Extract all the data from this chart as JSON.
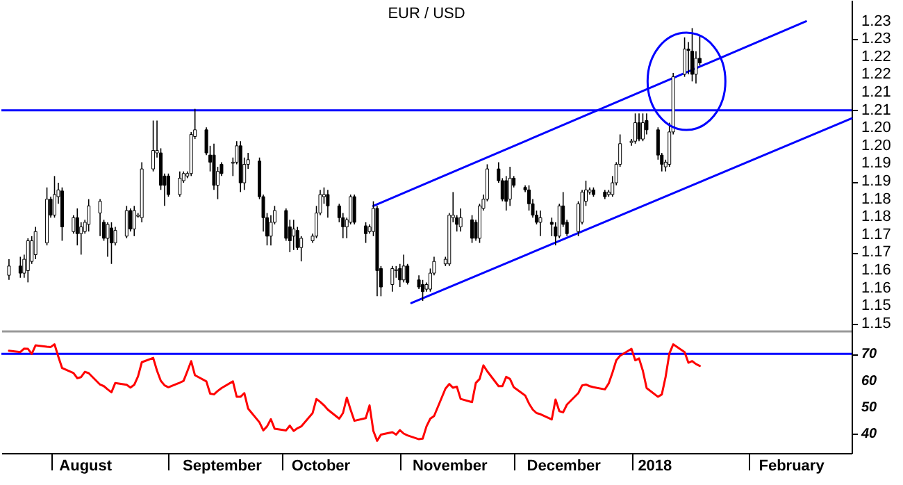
{
  "chart_data": [
    {
      "type": "candlestick",
      "title": "EUR / USD",
      "xlim": [
        "2017-07-19",
        "2018-02-28"
      ],
      "ylim": [
        1.148,
        1.241
      ],
      "yticks": [
        {
          "value": 1.15,
          "label": "1.15"
        },
        {
          "value": 1.155,
          "label": "1.15"
        },
        {
          "value": 1.16,
          "label": "1.16"
        },
        {
          "value": 1.165,
          "label": "1.16"
        },
        {
          "value": 1.17,
          "label": "1.17"
        },
        {
          "value": 1.175,
          "label": "1.17"
        },
        {
          "value": 1.18,
          "label": "1.18"
        },
        {
          "value": 1.185,
          "label": "1.18"
        },
        {
          "value": 1.19,
          "label": "1.19"
        },
        {
          "value": 1.195,
          "label": "1.19"
        },
        {
          "value": 1.2,
          "label": "1.20"
        },
        {
          "value": 1.205,
          "label": "1.20"
        },
        {
          "value": 1.21,
          "label": "1.21"
        },
        {
          "value": 1.215,
          "label": "1.21"
        },
        {
          "value": 1.22,
          "label": "1.22"
        },
        {
          "value": 1.225,
          "label": "1.22"
        },
        {
          "value": 1.23,
          "label": "1.23"
        },
        {
          "value": 1.235,
          "label": "1.23"
        }
      ],
      "tick_labels": "y",
      "grid": false,
      "ref_lines": [
        {
          "axis": "y",
          "value": 1.21,
          "color": "#0000ff"
        }
      ],
      "x": [
        "2017-07-21",
        "2017-07-24",
        "2017-07-25",
        "2017-07-26",
        "2017-07-27",
        "2017-07-28",
        "2017-07-31",
        "2017-08-01",
        "2017-08-02",
        "2017-08-03",
        "2017-08-04",
        "2017-08-07",
        "2017-08-08",
        "2017-08-09",
        "2017-08-10",
        "2017-08-11",
        "2017-08-14",
        "2017-08-15",
        "2017-08-16",
        "2017-08-17",
        "2017-08-18",
        "2017-08-21",
        "2017-08-22",
        "2017-08-23",
        "2017-08-24",
        "2017-08-25",
        "2017-08-28",
        "2017-08-29",
        "2017-08-30",
        "2017-08-31",
        "2017-09-01",
        "2017-09-04",
        "2017-09-05",
        "2017-09-06",
        "2017-09-07",
        "2017-09-08",
        "2017-09-11",
        "2017-09-12",
        "2017-09-13",
        "2017-09-14",
        "2017-09-15",
        "2017-09-18",
        "2017-09-19",
        "2017-09-20",
        "2017-09-21",
        "2017-09-22",
        "2017-09-25",
        "2017-09-26",
        "2017-09-27",
        "2017-09-28",
        "2017-09-29",
        "2017-10-02",
        "2017-10-03",
        "2017-10-04",
        "2017-10-05",
        "2017-10-06",
        "2017-10-09",
        "2017-10-10",
        "2017-10-11",
        "2017-10-12",
        "2017-10-13",
        "2017-10-16",
        "2017-10-17",
        "2017-10-18",
        "2017-10-19",
        "2017-10-20",
        "2017-10-23",
        "2017-10-24",
        "2017-10-25",
        "2017-10-26",
        "2017-10-27",
        "2017-10-30",
        "2017-10-31",
        "2017-11-01",
        "2017-11-02",
        "2017-11-03",
        "2017-11-06",
        "2017-11-07",
        "2017-11-08",
        "2017-11-09",
        "2017-11-10",
        "2017-11-13",
        "2017-11-14",
        "2017-11-15",
        "2017-11-16",
        "2017-11-17",
        "2017-11-20",
        "2017-11-21",
        "2017-11-22",
        "2017-11-23",
        "2017-11-24",
        "2017-11-27",
        "2017-11-28",
        "2017-11-29",
        "2017-11-30",
        "2017-12-01",
        "2017-12-04",
        "2017-12-05",
        "2017-12-06",
        "2017-12-07",
        "2017-12-08",
        "2017-12-11",
        "2017-12-12",
        "2017-12-13",
        "2017-12-14",
        "2017-12-15",
        "2017-12-18",
        "2017-12-19",
        "2017-12-20",
        "2017-12-21",
        "2017-12-22",
        "2017-12-25",
        "2017-12-26",
        "2017-12-27",
        "2017-12-28",
        "2017-12-29",
        "2018-01-01",
        "2018-01-02",
        "2018-01-03",
        "2018-01-04",
        "2018-01-05",
        "2018-01-08",
        "2018-01-09",
        "2018-01-10",
        "2018-01-11",
        "2018-01-12",
        "2018-01-15",
        "2018-01-16",
        "2018-01-17",
        "2018-01-18",
        "2018-01-19"
      ],
      "ohlc": [
        [
          1.1636,
          1.1681,
          1.1623,
          1.1662
        ],
        [
          1.1662,
          1.1688,
          1.1629,
          1.1642
        ],
        [
          1.1642,
          1.1694,
          1.1629,
          1.1681
        ],
        [
          1.1649,
          1.174,
          1.1616,
          1.1733
        ],
        [
          1.1675,
          1.1746,
          1.1668,
          1.1733
        ],
        [
          1.1694,
          1.1772,
          1.1681,
          1.1759
        ],
        [
          1.1727,
          1.1883,
          1.172,
          1.185
        ],
        [
          1.185,
          1.1857,
          1.1798,
          1.1805
        ],
        [
          1.1805,
          1.1915,
          1.1798,
          1.1863
        ],
        [
          1.1857,
          1.1896,
          1.1837,
          1.1876
        ],
        [
          1.1873,
          1.1883,
          1.1733,
          1.1772
        ],
        [
          1.1759,
          1.1805,
          1.1753,
          1.1798
        ],
        [
          1.1798,
          1.1824,
          1.172,
          1.1753
        ],
        [
          1.1753,
          1.1785,
          1.1694,
          1.1772
        ],
        [
          1.1759,
          1.1792,
          1.1753,
          1.1785
        ],
        [
          1.1779,
          1.185,
          1.1759,
          1.1831
        ],
        [
          1.1811,
          1.185,
          1.1746,
          1.1844
        ],
        [
          1.1785,
          1.1792,
          1.1733,
          1.174
        ],
        [
          1.174,
          1.1785,
          1.1688,
          1.1779
        ],
        [
          1.1769,
          1.1785,
          1.1668,
          1.1727
        ],
        [
          1.1727,
          1.1772,
          1.172,
          1.1762
        ],
        [
          1.1746,
          1.1831,
          1.174,
          1.1818
        ],
        [
          1.1818,
          1.1824,
          1.1759,
          1.1766
        ],
        [
          1.1766,
          1.1831,
          1.1746,
          1.1818
        ],
        [
          1.1802,
          1.1811,
          1.1798,
          1.1805
        ],
        [
          1.1798,
          1.1954,
          1.1785,
          1.1935
        ],
        [
          1.1935,
          1.2071,
          1.1928,
          1.1987
        ],
        [
          1.198,
          1.2071,
          1.1967,
          1.1987
        ],
        [
          1.198,
          1.1993,
          1.1876,
          1.1889
        ],
        [
          1.1915,
          1.1922,
          1.1831,
          1.1889
        ],
        [
          1.1915,
          1.1922,
          1.1857,
          1.1863
        ],
        [
          1.1863,
          1.1928,
          1.1857,
          1.1909
        ],
        [
          1.1902,
          1.1928,
          1.1896,
          1.1922
        ],
        [
          1.1915,
          1.1928,
          1.1909,
          1.1922
        ],
        [
          1.1922,
          1.2039,
          1.1915,
          1.2032
        ],
        [
          1.2026,
          1.2104,
          1.2019,
          1.2045
        ],
        [
          1.2045,
          1.2052,
          1.1974,
          1.198
        ],
        [
          1.1974,
          1.2,
          1.1928,
          1.1954
        ],
        [
          1.1974,
          1.2006,
          1.1876,
          1.1889
        ],
        [
          1.1889,
          1.1941,
          1.185,
          1.1928
        ],
        [
          1.1948,
          1.1954,
          1.1915,
          1.1922
        ],
        [
          1.1951,
          1.1967,
          1.1915,
          1.1954
        ],
        [
          1.1954,
          1.2013,
          1.1948,
          1.2
        ],
        [
          1.2,
          1.2013,
          1.187,
          1.1896
        ],
        [
          1.1896,
          1.1967,
          1.1876,
          1.1948
        ],
        [
          1.1948,
          1.198,
          1.1935,
          1.1961
        ],
        [
          1.1957,
          1.1967,
          1.185,
          1.1857
        ],
        [
          1.1857,
          1.1863,
          1.1759,
          1.1798
        ],
        [
          1.1798,
          1.1811,
          1.172,
          1.1746
        ],
        [
          1.1746,
          1.1805,
          1.172,
          1.1785
        ],
        [
          1.1785,
          1.1831,
          1.1779,
          1.1818
        ],
        [
          1.1818,
          1.1824,
          1.1733,
          1.174
        ],
        [
          1.1772,
          1.1792,
          1.1701,
          1.1733
        ],
        [
          1.1746,
          1.1792,
          1.1707,
          1.1766
        ],
        [
          1.1762,
          1.1772,
          1.1707,
          1.1714
        ],
        [
          1.1714,
          1.1746,
          1.1675,
          1.174
        ],
        [
          1.1733,
          1.1753,
          1.1727,
          1.1746
        ],
        [
          1.1746,
          1.1831,
          1.174,
          1.1811
        ],
        [
          1.1811,
          1.1876,
          1.1805,
          1.1863
        ],
        [
          1.1857,
          1.1883,
          1.1837,
          1.1863
        ],
        [
          1.1863,
          1.1876,
          1.1798,
          1.1831
        ],
        [
          1.1831,
          1.1837,
          1.1785,
          1.1798
        ],
        [
          1.1798,
          1.1811,
          1.174,
          1.1772
        ],
        [
          1.1772,
          1.1798,
          1.174,
          1.1792
        ],
        [
          1.1785,
          1.1863,
          1.1779,
          1.1857
        ],
        [
          1.1857,
          1.1863,
          1.1779,
          1.1785
        ],
        [
          1.1775,
          1.1785,
          1.1727,
          1.1753
        ],
        [
          1.1759,
          1.1779,
          1.1753,
          1.1772
        ],
        [
          1.1759,
          1.1844,
          1.1746,
          1.1824
        ],
        [
          1.1824,
          1.1831,
          1.1577,
          1.1649
        ],
        [
          1.1655,
          1.1662,
          1.1577,
          1.1603
        ],
        [
          1.161,
          1.1662,
          1.159,
          1.1655
        ],
        [
          1.1649,
          1.1662,
          1.1629,
          1.1652
        ],
        [
          1.1655,
          1.1668,
          1.1603,
          1.1623
        ],
        [
          1.1623,
          1.1694,
          1.1616,
          1.1662
        ],
        [
          1.1662,
          1.1668,
          1.161,
          1.1616
        ],
        [
          1.1623,
          1.1636,
          1.1597,
          1.1603
        ],
        [
          1.161,
          1.1623,
          1.1564,
          1.159
        ],
        [
          1.1597,
          1.1616,
          1.159,
          1.161
        ],
        [
          1.1597,
          1.1655,
          1.159,
          1.1642
        ],
        [
          1.1642,
          1.1688,
          1.1636,
          1.1675
        ],
        [
          1.1668,
          1.1688,
          1.1662,
          1.1681
        ],
        [
          1.1668,
          1.1811,
          1.1662,
          1.1805
        ],
        [
          1.1798,
          1.187,
          1.1785,
          1.1805
        ],
        [
          1.1798,
          1.1805,
          1.1759,
          1.1779
        ],
        [
          1.1772,
          1.1824,
          1.1759,
          1.1798
        ],
        [
          1.1792,
          1.1805,
          1.1727,
          1.174
        ],
        [
          1.1785,
          1.1792,
          1.1733,
          1.174
        ],
        [
          1.174,
          1.1837,
          1.1727,
          1.1831
        ],
        [
          1.1824,
          1.1863,
          1.1818,
          1.185
        ],
        [
          1.185,
          1.1948,
          1.1844,
          1.1935
        ],
        [
          1.1935,
          1.1954,
          1.1896,
          1.1902
        ],
        [
          1.1902,
          1.1909,
          1.1844,
          1.185
        ],
        [
          1.1902,
          1.1915,
          1.1818,
          1.1844
        ],
        [
          1.185,
          1.1941,
          1.1831,
          1.1909
        ],
        [
          1.1909,
          1.1915,
          1.1883,
          1.1889
        ],
        [
          1.1883,
          1.1889,
          1.187,
          1.1876
        ],
        [
          1.1876,
          1.1889,
          1.1818,
          1.1837
        ],
        [
          1.1837,
          1.185,
          1.1798,
          1.1805
        ],
        [
          1.1805,
          1.1818,
          1.1779,
          1.1785
        ],
        [
          1.1785,
          1.1818,
          1.1746,
          1.1798
        ],
        [
          1.1785,
          1.1798,
          1.1746,
          1.1779
        ],
        [
          1.1772,
          1.1785,
          1.172,
          1.1746
        ],
        [
          1.1746,
          1.1837,
          1.174,
          1.1831
        ],
        [
          1.1831,
          1.187,
          1.1772,
          1.1779
        ],
        [
          1.1785,
          1.1792,
          1.1746,
          1.1753
        ],
        [
          1.1759,
          1.1844,
          1.1746,
          1.1837
        ],
        [
          1.1785,
          1.1876,
          1.1779,
          1.187
        ],
        [
          1.1844,
          1.1902,
          1.1831,
          1.1876
        ],
        [
          1.187,
          1.1883,
          1.1863,
          1.1876
        ],
        [
          1.1876,
          1.1883,
          1.1857,
          1.1863
        ],
        [
          1.187,
          1.1876,
          1.185,
          1.1857
        ],
        [
          1.1863,
          1.1876,
          1.1857,
          1.187
        ],
        [
          1.1863,
          1.1915,
          1.1857,
          1.1896
        ],
        [
          1.1896,
          1.1954,
          1.1889,
          1.1948
        ],
        [
          1.1948,
          1.2032,
          1.1941,
          1.2006
        ],
        [
          1.2009,
          1.2019,
          1.2,
          1.2013
        ],
        [
          1.2013,
          1.2091,
          1.2006,
          1.2065
        ],
        [
          1.2065,
          1.2091,
          1.2013,
          1.2019
        ],
        [
          1.2019,
          1.2091,
          1.2013,
          1.2065
        ],
        [
          1.2071,
          1.2091,
          1.2032,
          1.2045
        ],
        [
          1.2045,
          1.2052,
          1.1961,
          1.1974
        ],
        [
          1.1974,
          1.198,
          1.1928,
          1.1948
        ],
        [
          1.1941,
          1.1961,
          1.1928,
          1.1954
        ],
        [
          1.1948,
          1.2065,
          1.1941,
          1.2039
        ],
        [
          1.2039,
          1.2205,
          1.2032,
          1.2194
        ],
        [
          1.2201,
          1.2305,
          1.2194,
          1.2272
        ],
        [
          1.2272,
          1.2292,
          1.2201,
          1.2268
        ],
        [
          1.2266,
          1.2331,
          1.2181,
          1.2201
        ],
        [
          1.2201,
          1.2266,
          1.2175,
          1.2246
        ],
        [
          1.2246,
          1.2311,
          1.2226,
          1.2233
        ]
      ],
      "series": [
        {
          "type": "line",
          "color": "#0000ff",
          "x": [
            "2017-10-25",
            "2018-02-16"
          ],
          "values": [
            1.1831,
            1.235
          ]
        },
        {
          "type": "line",
          "color": "#0000ff",
          "x": [
            "2017-11-04",
            "2018-02-28"
          ],
          "values": [
            1.1558,
            1.2077
          ]
        }
      ]
    },
    {
      "type": "line",
      "xlim": [
        "2017-07-19",
        "2018-02-28"
      ],
      "ylim": [
        32.8,
        78.7
      ],
      "yticks": [
        40,
        50,
        60,
        70
      ],
      "grid": false,
      "marker": "none",
      "line_style": "solid",
      "xticks": [
        {
          "value": "2017-08-01",
          "label": null
        },
        {
          "value": "2017-08-10",
          "label": "August"
        },
        {
          "value": "2017-09-01",
          "label": null
        },
        {
          "value": "2017-09-15",
          "label": "September"
        },
        {
          "value": "2017-10-01",
          "label": null
        },
        {
          "value": "2017-10-11",
          "label": "October"
        },
        {
          "value": "2017-11-01",
          "label": null
        },
        {
          "value": "2017-11-14",
          "label": "November"
        },
        {
          "value": "2017-12-01",
          "label": null
        },
        {
          "value": "2017-12-14",
          "label": "December"
        },
        {
          "value": "2018-01-01",
          "label": null
        },
        {
          "value": "2018-01-07",
          "label": "2018"
        },
        {
          "value": "2018-02-01",
          "label": null
        },
        {
          "value": "2018-02-12",
          "label": "February"
        }
      ],
      "ref_lines": [
        {
          "axis": "y",
          "value": 70,
          "color": "#0000ff"
        }
      ],
      "x": [
        "2017-07-21",
        "2017-07-24",
        "2017-07-25",
        "2017-07-26",
        "2017-07-27",
        "2017-07-28",
        "2017-07-31",
        "2017-08-01",
        "2017-08-02",
        "2017-08-03",
        "2017-08-04",
        "2017-08-07",
        "2017-08-08",
        "2017-08-09",
        "2017-08-10",
        "2017-08-11",
        "2017-08-14",
        "2017-08-15",
        "2017-08-16",
        "2017-08-17",
        "2017-08-18",
        "2017-08-21",
        "2017-08-22",
        "2017-08-23",
        "2017-08-24",
        "2017-08-25",
        "2017-08-28",
        "2017-08-29",
        "2017-08-30",
        "2017-08-31",
        "2017-09-01",
        "2017-09-04",
        "2017-09-05",
        "2017-09-06",
        "2017-09-07",
        "2017-09-08",
        "2017-09-11",
        "2017-09-12",
        "2017-09-13",
        "2017-09-14",
        "2017-09-15",
        "2017-09-18",
        "2017-09-19",
        "2017-09-20",
        "2017-09-21",
        "2017-09-22",
        "2017-09-25",
        "2017-09-26",
        "2017-09-27",
        "2017-09-28",
        "2017-09-29",
        "2017-10-02",
        "2017-10-03",
        "2017-10-04",
        "2017-10-05",
        "2017-10-06",
        "2017-10-09",
        "2017-10-10",
        "2017-10-11",
        "2017-10-12",
        "2017-10-13",
        "2017-10-16",
        "2017-10-17",
        "2017-10-18",
        "2017-10-19",
        "2017-10-20",
        "2017-10-23",
        "2017-10-24",
        "2017-10-25",
        "2017-10-26",
        "2017-10-27",
        "2017-10-30",
        "2017-10-31",
        "2017-11-01",
        "2017-11-02",
        "2017-11-03",
        "2017-11-06",
        "2017-11-07",
        "2017-11-08",
        "2017-11-09",
        "2017-11-10",
        "2017-11-13",
        "2017-11-14",
        "2017-11-15",
        "2017-11-16",
        "2017-11-17",
        "2017-11-20",
        "2017-11-21",
        "2017-11-22",
        "2017-11-23",
        "2017-11-24",
        "2017-11-27",
        "2017-11-28",
        "2017-11-29",
        "2017-11-30",
        "2017-12-01",
        "2017-12-04",
        "2017-12-05",
        "2017-12-06",
        "2017-12-07",
        "2017-12-08",
        "2017-12-11",
        "2017-12-12",
        "2017-12-13",
        "2017-12-14",
        "2017-12-15",
        "2017-12-18",
        "2017-12-19",
        "2017-12-20",
        "2017-12-21",
        "2017-12-22",
        "2017-12-25",
        "2017-12-26",
        "2017-12-27",
        "2017-12-28",
        "2017-12-29",
        "2018-01-01",
        "2018-01-02",
        "2018-01-03",
        "2018-01-04",
        "2018-01-05",
        "2018-01-08",
        "2018-01-09",
        "2018-01-10",
        "2018-01-11",
        "2018-01-12",
        "2018-01-15",
        "2018-01-16",
        "2018-01-17",
        "2018-01-18",
        "2018-01-19"
      ],
      "series": [
        {
          "color": "#ff0000",
          "values": [
            71.2,
            70.7,
            72.0,
            71.9,
            70.0,
            73.2,
            72.7,
            72.6,
            73.6,
            69.0,
            64.7,
            62.8,
            60.9,
            61.3,
            63.3,
            62.8,
            58.5,
            57.9,
            56.7,
            55.6,
            59.1,
            58.4,
            57.4,
            58.4,
            61.6,
            66.9,
            68.5,
            63.7,
            59.9,
            58.2,
            57.5,
            59.2,
            59.9,
            63.5,
            67.3,
            62.0,
            59.7,
            55.1,
            54.8,
            56.1,
            57.2,
            59.7,
            53.9,
            53.9,
            55.3,
            49.5,
            44.3,
            41.3,
            42.8,
            45.5,
            41.9,
            41.3,
            43.1,
            41.1,
            42.1,
            42.8,
            47.8,
            53.1,
            52.0,
            50.7,
            49.1,
            45.7,
            47.8,
            53.6,
            49.1,
            44.9,
            45.9,
            50.7,
            41.1,
            37.4,
            39.7,
            40.6,
            39.7,
            41.4,
            40.1,
            39.4,
            38.0,
            38.2,
            42.8,
            45.7,
            46.7,
            57.0,
            58.7,
            57.3,
            57.7,
            53.1,
            51.9,
            59.1,
            60.6,
            65.7,
            63.5,
            57.9,
            57.9,
            61.4,
            60.6,
            57.5,
            54.4,
            51.4,
            49.1,
            47.8,
            47.4,
            45.4,
            52.9,
            48.5,
            48.1,
            51.0,
            55.3,
            58.2,
            58.5,
            57.9,
            57.5,
            56.7,
            58.9,
            63.0,
            67.6,
            69.3,
            71.9,
            67.6,
            68.3,
            63.7,
            57.2,
            53.9,
            54.8,
            61.4,
            70.2,
            73.6,
            70.7,
            66.7,
            67.3,
            66.2,
            65.5
          ]
        }
      ]
    }
  ]
}
